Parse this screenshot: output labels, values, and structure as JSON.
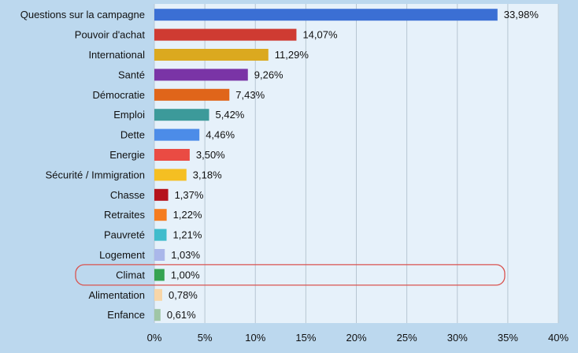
{
  "chart_data": {
    "type": "bar",
    "orientation": "horizontal",
    "categories": [
      "Questions sur la campagne",
      "Pouvoir d'achat",
      "International",
      "Santé",
      "Démocratie",
      "Emploi",
      "Dette",
      "Energie",
      "Sécurité / Immigration",
      "Chasse",
      "Retraites",
      "Pauvreté",
      "Logement",
      "Climat",
      "Alimentation",
      "Enfance"
    ],
    "values": [
      33.98,
      14.07,
      11.29,
      9.26,
      7.43,
      5.42,
      4.46,
      3.5,
      3.18,
      1.37,
      1.22,
      1.21,
      1.03,
      1.0,
      0.78,
      0.61
    ],
    "value_labels": [
      "33,98%",
      "14,07%",
      "11,29%",
      "9,26%",
      "7,43%",
      "5,42%",
      "4,46%",
      "3,50%",
      "3,18%",
      "1,37%",
      "1,22%",
      "1,21%",
      "1,03%",
      "1,00%",
      "0,78%",
      "0,61%"
    ],
    "colors": [
      "#3b6fd4",
      "#cf3b32",
      "#dba91f",
      "#7a34a6",
      "#e0651a",
      "#3c9a9a",
      "#4c8ce8",
      "#ea4b43",
      "#f5bf22",
      "#b5121b",
      "#f57c1f",
      "#3fbccc",
      "#aab7ea",
      "#35a352",
      "#f8d6a8",
      "#9fc6a6"
    ],
    "xlim": [
      0,
      40
    ],
    "xticks": [
      0,
      5,
      10,
      15,
      20,
      25,
      30,
      35,
      40
    ],
    "xtick_labels": [
      "0%",
      "5%",
      "10%",
      "15%",
      "20%",
      "25%",
      "30%",
      "35%",
      "40%"
    ],
    "grid": "vertical",
    "highlighted_category": "Climat",
    "highlight_color": "#d9534f",
    "plot_background": "#e6f1fa",
    "page_background": "#bcd8ee",
    "title": "",
    "xlabel": "",
    "ylabel": ""
  }
}
